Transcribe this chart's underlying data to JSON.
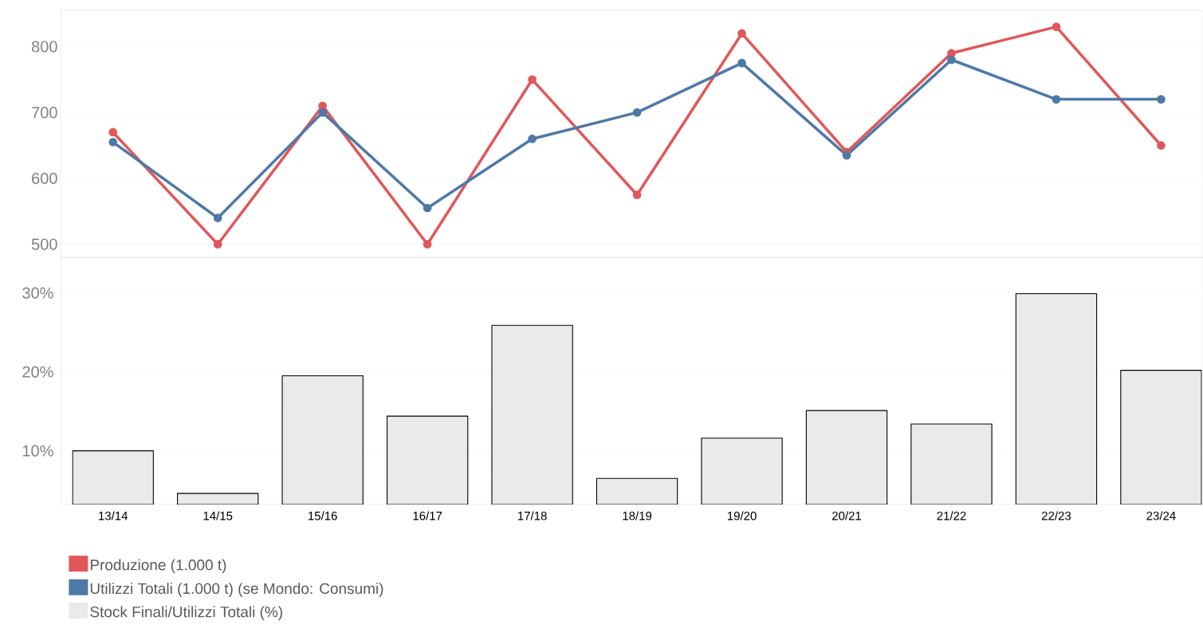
{
  "chart_data": [
    {
      "type": "line",
      "categories": [
        null,
        null,
        null,
        null,
        null,
        null,
        null,
        null,
        null,
        null,
        null
      ],
      "series": [
        {
          "name": "Produzione (1.000 t)",
          "color": "#e15759",
          "values": [
            670,
            500,
            710,
            500,
            750,
            575,
            820,
            640,
            790,
            830,
            650
          ]
        },
        {
          "name": "Utilizzi Totali (1.000 t) (se Mondo: Consumi)",
          "color": "#4e79a7",
          "values": [
            655,
            540,
            700,
            555,
            660,
            700,
            775,
            635,
            780,
            720,
            720
          ]
        }
      ],
      "ylim": [
        480,
        855
      ],
      "yticks": [
        500,
        600,
        700,
        800
      ],
      "grid": "y",
      "marker": "circle",
      "tick_labels": "y",
      "legend": "bottom left"
    },
    {
      "type": "bar",
      "categories": [
        "13/14",
        "14/15",
        "15/16",
        "16/17",
        "17/18",
        "18/19",
        "19/20",
        "20/21",
        "21/22",
        "22/23",
        "23/24"
      ],
      "series": [
        {
          "name": "Stock Finali/Utilizzi Totali (%)",
          "color": "#ebeae9",
          "values": [
            10,
            4.6,
            19.5,
            14.4,
            25.9,
            6.5,
            11.6,
            15.1,
            13.4,
            29.9,
            20.2
          ]
        }
      ],
      "ylim": [
        3.2,
        34.5
      ],
      "yticks": [
        {
          "value": 10,
          "label": "10%"
        },
        {
          "value": 20,
          "label": "20%"
        },
        {
          "value": 30,
          "label": "30%"
        }
      ],
      "grid": "y",
      "legend": "bottom left"
    }
  ]
}
